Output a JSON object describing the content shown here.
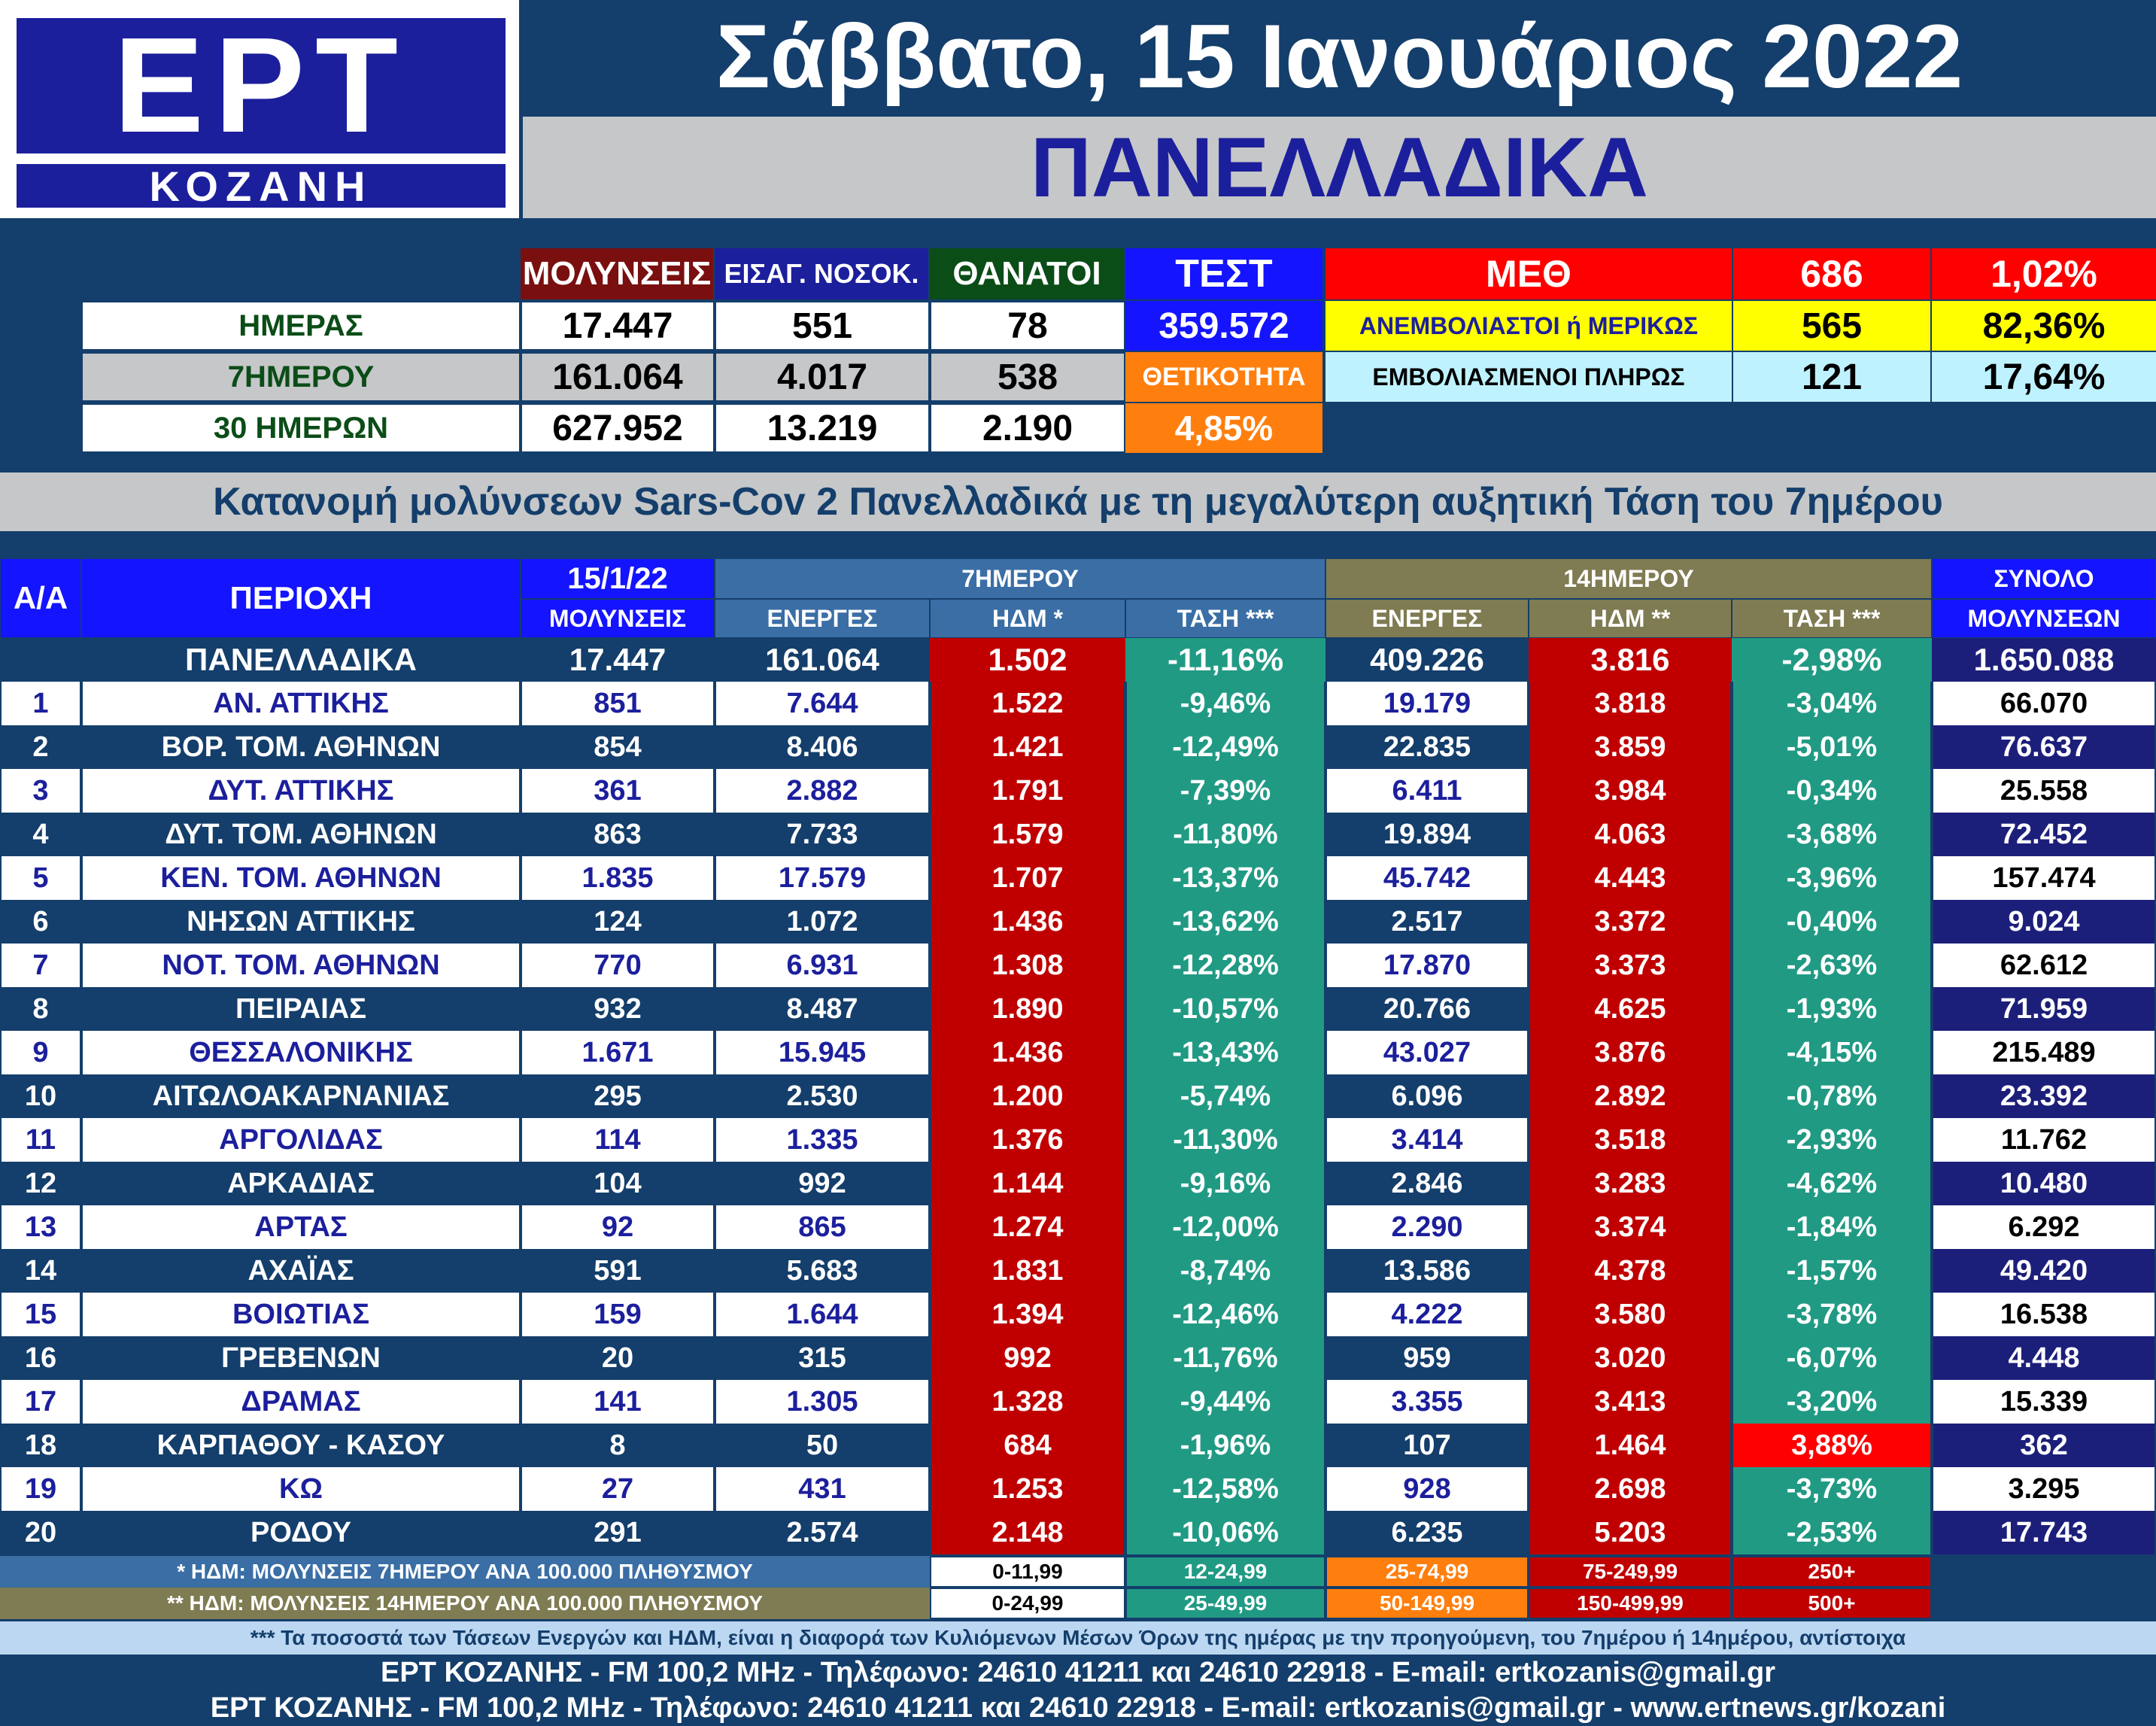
{
  "logo": {
    "main": "ΕΡΤ",
    "sub": "ΚΟΖΑΝΗ"
  },
  "date": "Σάββατο, 15 Ιανουάριος 2022",
  "scope": "ΠΑΝΕΛΛΑΔΙΚΑ",
  "summary": {
    "headers": {
      "infections": "ΜΟΛΥΝΣΕΙΣ",
      "admissions": "ΕΙΣΑΓ. ΝΟΣΟΚ.",
      "deaths": "ΘΑΝΑΤΟΙ",
      "tests": "ΤΕΣΤ"
    },
    "rows": [
      {
        "label": "ΗΜΕΡΑΣ",
        "infections": "17.447",
        "admissions": "551",
        "deaths": "78"
      },
      {
        "label": "7ΗΜΕΡΟΥ",
        "infections": "161.064",
        "admissions": "4.017",
        "deaths": "538"
      },
      {
        "label": "30 ΗΜΕΡΩΝ",
        "infections": "627.952",
        "admissions": "13.219",
        "deaths": "2.190"
      }
    ],
    "tests_value": "359.572",
    "positivity_label": "ΘΕΤΙΚΟΤΗΤΑ",
    "positivity_value": "4,85%",
    "icu": {
      "label": "ΜΕΘ",
      "count": "686",
      "percent": "1,02%",
      "unvaccinated_label": "ΑΝΕΜΒΟΛΙΑΣΤΟΙ ή ΜΕΡΙΚΩΣ",
      "unvaccinated_count": "565",
      "unvaccinated_percent": "82,36%",
      "vaccinated_label": "ΕΜΒΟΛΙΑΣΜΕΝΟΙ ΠΛΗΡΩΣ",
      "vaccinated_count": "121",
      "vaccinated_percent": "17,64%"
    }
  },
  "subtitle": "Κατανομή μολύνσεων Sars-Cov 2 Πανελλαδικά με τη μεγαλύτερη αυξητική Τάση του 7ημέρου",
  "table": {
    "headers": {
      "aa": "Α/Α",
      "region": "ΠΕΡΙΟΧΗ",
      "date": "15/1/22",
      "infections": "ΜΟΛΥΝΣΕΙΣ",
      "group7": "7ΗΜΕΡΟΥ",
      "group14": "14ΗΜΕΡΟΥ",
      "active7": "ΕΝΕΡΓΕΣ",
      "idm7": "ΗΔΜ *",
      "trend7": "ΤΑΣΗ ***",
      "active14": "ΕΝΕΡΓΕΣ",
      "idm14": "ΗΔΜ **",
      "trend14": "ΤΑΣΗ ***",
      "total_top": "ΣΥΝΟΛΟ",
      "total_bottom": "ΜΟΛΥΝΣΕΩΝ"
    },
    "national": {
      "region": "ΠΑΝΕΛΛΑΔΙΚΑ",
      "day": "17.447",
      "active7": "161.064",
      "idm7": "1.502",
      "trend7": "-11,16%",
      "active14": "409.226",
      "idm14": "3.816",
      "trend14": "-2,98%",
      "total": "1.650.088"
    },
    "rows": [
      {
        "aa": "1",
        "region": "ΑΝ. ΑΤΤΙΚΗΣ",
        "day": "851",
        "active7": "7.644",
        "idm7": "1.522",
        "trend7": "-9,46%",
        "active14": "19.179",
        "idm14": "3.818",
        "trend14": "-3,04%",
        "total": "66.070"
      },
      {
        "aa": "2",
        "region": "ΒΟΡ. ΤΟΜ. ΑΘΗΝΩΝ",
        "day": "854",
        "active7": "8.406",
        "idm7": "1.421",
        "trend7": "-12,49%",
        "active14": "22.835",
        "idm14": "3.859",
        "trend14": "-5,01%",
        "total": "76.637"
      },
      {
        "aa": "3",
        "region": "ΔΥΤ. ΑΤΤΙΚΗΣ",
        "day": "361",
        "active7": "2.882",
        "idm7": "1.791",
        "trend7": "-7,39%",
        "active14": "6.411",
        "idm14": "3.984",
        "trend14": "-0,34%",
        "total": "25.558"
      },
      {
        "aa": "4",
        "region": "ΔΥΤ. ΤΟΜ. ΑΘΗΝΩΝ",
        "day": "863",
        "active7": "7.733",
        "idm7": "1.579",
        "trend7": "-11,80%",
        "active14": "19.894",
        "idm14": "4.063",
        "trend14": "-3,68%",
        "total": "72.452"
      },
      {
        "aa": "5",
        "region": "ΚΕΝ. ΤΟΜ. ΑΘΗΝΩΝ",
        "day": "1.835",
        "active7": "17.579",
        "idm7": "1.707",
        "trend7": "-13,37%",
        "active14": "45.742",
        "idm14": "4.443",
        "trend14": "-3,96%",
        "total": "157.474"
      },
      {
        "aa": "6",
        "region": "ΝΗΣΩΝ ΑΤΤΙΚΗΣ",
        "day": "124",
        "active7": "1.072",
        "idm7": "1.436",
        "trend7": "-13,62%",
        "active14": "2.517",
        "idm14": "3.372",
        "trend14": "-0,40%",
        "total": "9.024"
      },
      {
        "aa": "7",
        "region": "ΝΟΤ. ΤΟΜ. ΑΘΗΝΩΝ",
        "day": "770",
        "active7": "6.931",
        "idm7": "1.308",
        "trend7": "-12,28%",
        "active14": "17.870",
        "idm14": "3.373",
        "trend14": "-2,63%",
        "total": "62.612"
      },
      {
        "aa": "8",
        "region": "ΠΕΙΡΑΙΑΣ",
        "day": "932",
        "active7": "8.487",
        "idm7": "1.890",
        "trend7": "-10,57%",
        "active14": "20.766",
        "idm14": "4.625",
        "trend14": "-1,93%",
        "total": "71.959"
      },
      {
        "aa": "9",
        "region": "ΘΕΣΣΑΛΟΝΙΚΗΣ",
        "day": "1.671",
        "active7": "15.945",
        "idm7": "1.436",
        "trend7": "-13,43%",
        "active14": "43.027",
        "idm14": "3.876",
        "trend14": "-4,15%",
        "total": "215.489"
      },
      {
        "aa": "10",
        "region": "ΑΙΤΩΛΟΑΚΑΡΝΑΝΙΑΣ",
        "day": "295",
        "active7": "2.530",
        "idm7": "1.200",
        "trend7": "-5,74%",
        "active14": "6.096",
        "idm14": "2.892",
        "trend14": "-0,78%",
        "total": "23.392"
      },
      {
        "aa": "11",
        "region": "ΑΡΓΟΛΙΔΑΣ",
        "day": "114",
        "active7": "1.335",
        "idm7": "1.376",
        "trend7": "-11,30%",
        "active14": "3.414",
        "idm14": "3.518",
        "trend14": "-2,93%",
        "total": "11.762"
      },
      {
        "aa": "12",
        "region": "ΑΡΚΑΔΙΑΣ",
        "day": "104",
        "active7": "992",
        "idm7": "1.144",
        "trend7": "-9,16%",
        "active14": "2.846",
        "idm14": "3.283",
        "trend14": "-4,62%",
        "total": "10.480"
      },
      {
        "aa": "13",
        "region": "ΑΡΤΑΣ",
        "day": "92",
        "active7": "865",
        "idm7": "1.274",
        "trend7": "-12,00%",
        "active14": "2.290",
        "idm14": "3.374",
        "trend14": "-1,84%",
        "total": "6.292"
      },
      {
        "aa": "14",
        "region": "ΑΧΑΪΑΣ",
        "day": "591",
        "active7": "5.683",
        "idm7": "1.831",
        "trend7": "-8,74%",
        "active14": "13.586",
        "idm14": "4.378",
        "trend14": "-1,57%",
        "total": "49.420"
      },
      {
        "aa": "15",
        "region": "ΒΟΙΩΤΙΑΣ",
        "day": "159",
        "active7": "1.644",
        "idm7": "1.394",
        "trend7": "-12,46%",
        "active14": "4.222",
        "idm14": "3.580",
        "trend14": "-3,78%",
        "total": "16.538"
      },
      {
        "aa": "16",
        "region": "ΓΡΕΒΕΝΩΝ",
        "day": "20",
        "active7": "315",
        "idm7": "992",
        "trend7": "-11,76%",
        "active14": "959",
        "idm14": "3.020",
        "trend14": "-6,07%",
        "total": "4.448"
      },
      {
        "aa": "17",
        "region": "ΔΡΑΜΑΣ",
        "day": "141",
        "active7": "1.305",
        "idm7": "1.328",
        "trend7": "-9,44%",
        "active14": "3.355",
        "idm14": "3.413",
        "trend14": "-3,20%",
        "total": "15.339"
      },
      {
        "aa": "18",
        "region": "ΚΑΡΠΑΘΟΥ - ΚΑΣΟΥ",
        "day": "8",
        "active7": "50",
        "idm7": "684",
        "trend7": "-1,96%",
        "active14": "107",
        "idm14": "1.464",
        "trend14": "3,88%",
        "total": "362"
      },
      {
        "aa": "19",
        "region": "ΚΩ",
        "day": "27",
        "active7": "431",
        "idm7": "1.253",
        "trend7": "-12,58%",
        "active14": "928",
        "idm14": "2.698",
        "trend14": "-3,73%",
        "total": "3.295"
      },
      {
        "aa": "20",
        "region": "ΡΟΔΟΥ",
        "day": "291",
        "active7": "2.574",
        "idm7": "2.148",
        "trend7": "-10,06%",
        "active14": "6.235",
        "idm14": "5.203",
        "trend14": "-2,53%",
        "total": "17.743"
      }
    ]
  },
  "legend": {
    "note7": "* ΗΔΜ: ΜΟΛΥΝΣΕΙΣ 7ΗΜΕΡΟΥ ΑΝΑ 100.000 ΠΛΗΘΥΣΜΟΥ",
    "note14": "** ΗΔΜ: ΜΟΛΥΝΣΕΙΣ 14ΗΜΕΡΟΥ ΑΝΑ 100.000 ΠΛΗΘΥΣΜΟΥ",
    "ranges7": [
      "0-11,99",
      "12-24,99",
      "25-74,99",
      "75-249,99",
      "250+"
    ],
    "ranges14": [
      "0-24,99",
      "25-49,99",
      "50-149,99",
      "150-499,99",
      "500+"
    ],
    "colors": [
      "#ffffff",
      "#219a84",
      "#ff7f0e",
      "#c00000",
      "#c00000"
    ]
  },
  "footer": {
    "note": "*** Τα ποσοστά των Τάσεων Ενεργών και ΗΔΜ, είναι η διαφορά των Κυλιόμενων Μέσων Όρων της ημέρας με την προηγούμενη, του 7ημέρου ή 14ημέρου, αντίστοιχα",
    "line1": "ΕΡΤ ΚΟΖΑΝΗΣ - FM 100,2 MHz - Τηλέφωνο:  24610 41211 και 24610 22918 - E-mail: ertkozanis@gmail.gr",
    "line2": "ΕΡΤ ΚΟΖΑΝΗΣ - FM 100,2 MHz - Τηλέφωνο:  24610 41211 και 24610 22918 - E-mail: ertkozanis@gmail.gr - www.ertnews.gr/kozani"
  },
  "colors": {
    "navy": "#143e6b",
    "logo_blue": "#1c1f9c",
    "red": "#c00000",
    "teal": "#219a84",
    "olive": "#7f7b52",
    "steel": "#3a6ea5",
    "orange": "#ff7f0e",
    "yellow": "#ffff00",
    "cyan": "#bff2ff"
  }
}
